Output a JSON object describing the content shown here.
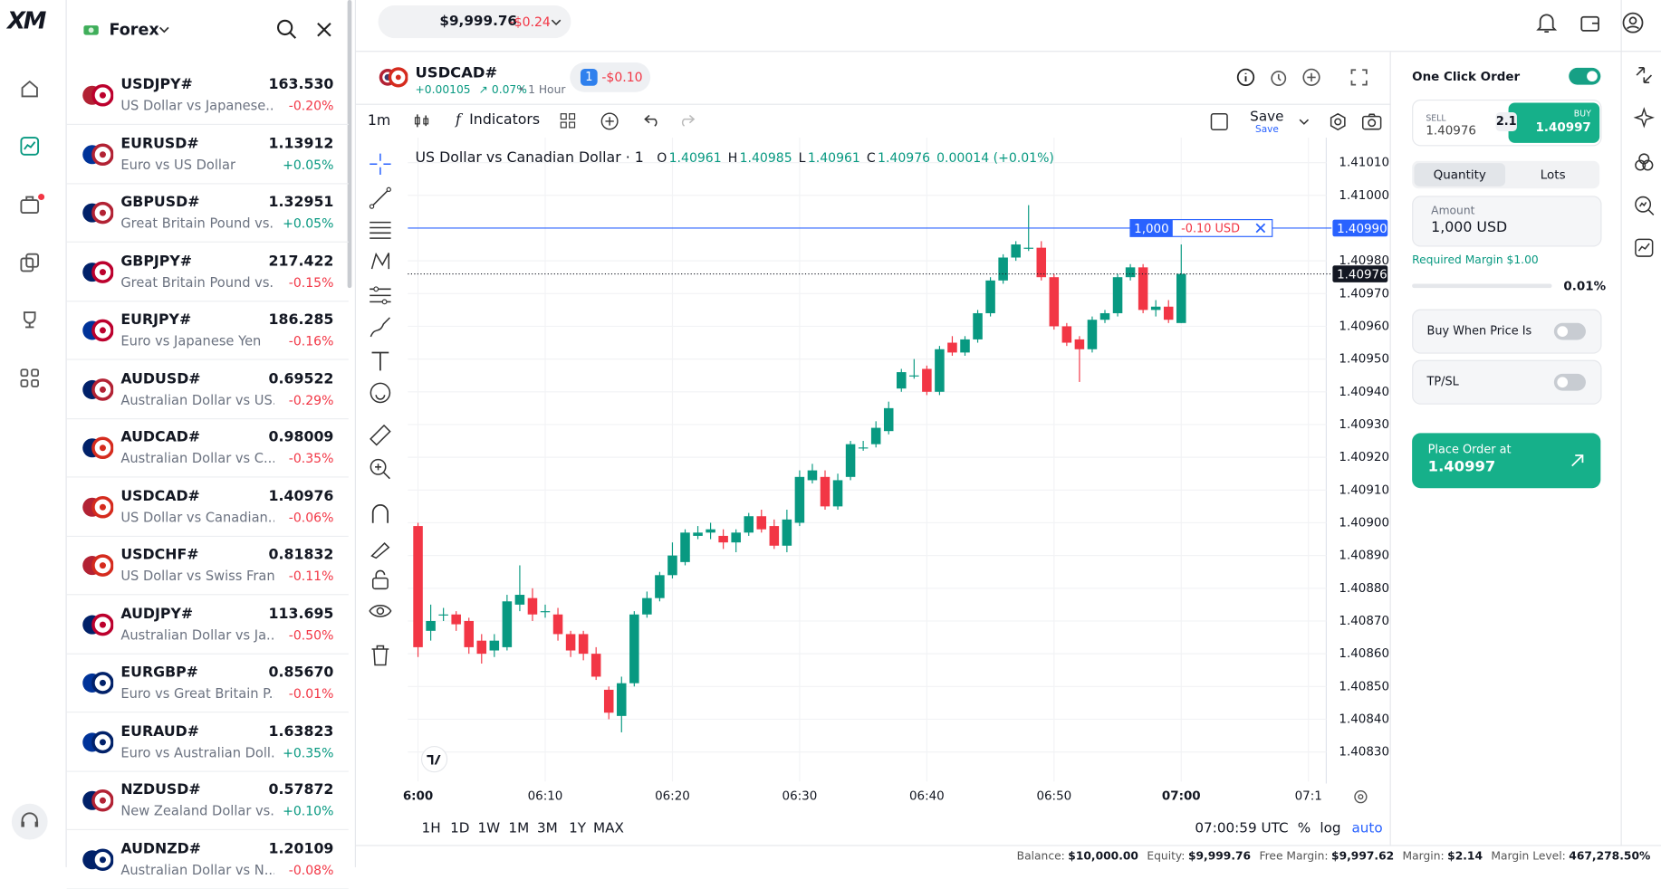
{
  "brand": {
    "logo": "XM"
  },
  "header": {
    "balance": "$9,999.76",
    "change": "-$0.24"
  },
  "sidebar": {
    "category": "Forex",
    "instruments": [
      {
        "symbol": "USDJPY#",
        "name": "US Dollar vs Japanese...",
        "price": "163.530",
        "change": "-0.20%"
      },
      {
        "symbol": "EURUSD#",
        "name": "Euro vs US Dollar",
        "price": "1.13912",
        "change": "+0.05%"
      },
      {
        "symbol": "GBPUSD#",
        "name": "Great Britain Pound vs...",
        "price": "1.32951",
        "change": "+0.05%"
      },
      {
        "symbol": "GBPJPY#",
        "name": "Great Britain Pound vs...",
        "price": "217.422",
        "change": "-0.15%"
      },
      {
        "symbol": "EURJPY#",
        "name": "Euro vs Japanese Yen",
        "price": "186.285",
        "change": "-0.16%"
      },
      {
        "symbol": "AUDUSD#",
        "name": "Australian Dollar vs US...",
        "price": "0.69522",
        "change": "-0.29%"
      },
      {
        "symbol": "AUDCAD#",
        "name": "Australian Dollar vs C...",
        "price": "0.98009",
        "change": "-0.35%"
      },
      {
        "symbol": "USDCAD#",
        "name": "US Dollar vs Canadian...",
        "price": "1.40976",
        "change": "-0.06%"
      },
      {
        "symbol": "USDCHF#",
        "name": "US Dollar vs Swiss Franc",
        "price": "0.81832",
        "change": "-0.11%"
      },
      {
        "symbol": "AUDJPY#",
        "name": "Australian Dollar vs Ja...",
        "price": "113.695",
        "change": "-0.50%"
      },
      {
        "symbol": "EURGBP#",
        "name": "Euro vs Great Britain P...",
        "price": "0.85670",
        "change": "-0.01%"
      },
      {
        "symbol": "EURAUD#",
        "name": "Euro vs Australian Doll...",
        "price": "1.63823",
        "change": "+0.35%"
      },
      {
        "symbol": "NZDUSD#",
        "name": "New Zealand Dollar vs...",
        "price": "0.57872",
        "change": "+0.10%"
      },
      {
        "symbol": "AUDNZD#",
        "name": "Australian Dollar vs N...",
        "price": "1.20109",
        "change": "-0.08%"
      }
    ]
  },
  "symbol_bar": {
    "symbol": "USDCAD#",
    "change": "+0.00105",
    "percent": "0.07%",
    "period": "• 1 Hour",
    "positions": "1",
    "pnl": "-$0.10"
  },
  "toolbar": {
    "interval": "1m",
    "indicators": "Indicators",
    "save": "Save",
    "save_sub": "Save"
  },
  "chart_legend": {
    "title": "US Dollar vs Canadian Dollar · 1",
    "fields": [
      {
        "key": "O",
        "value": "1.40961"
      },
      {
        "key": "H",
        "value": "1.40985"
      },
      {
        "key": "L",
        "value": "1.40961"
      },
      {
        "key": "C",
        "value": "1.40976"
      }
    ],
    "change": "0.00014 (+0.01%)"
  },
  "chart_data": {
    "type": "candlestick",
    "up_color": "#089981",
    "down_color": "#f23645",
    "grid": true,
    "x": [
      0,
      1,
      2,
      3,
      4,
      5,
      6,
      7,
      8,
      9,
      10,
      11,
      12,
      13,
      14,
      15,
      16,
      17,
      18,
      19,
      20,
      21,
      22,
      23,
      24,
      25,
      26,
      27,
      28,
      29,
      30,
      31,
      32,
      33,
      34,
      35,
      36,
      37,
      38,
      39,
      40,
      41,
      42,
      43,
      44,
      45,
      46,
      47,
      48,
      49,
      50,
      51,
      52,
      53,
      54,
      55,
      56,
      57,
      58,
      59,
      60
    ],
    "open": [
      1.40899,
      1.40867,
      1.40872,
      1.40872,
      1.4087,
      1.40864,
      1.40861,
      1.40862,
      1.40875,
      1.40877,
      1.40873,
      1.40872,
      1.40866,
      1.40866,
      1.4086,
      1.40849,
      1.40841,
      1.40851,
      1.40872,
      1.40877,
      1.40884,
      1.40888,
      1.40896,
      1.40897,
      1.40896,
      1.40894,
      1.40897,
      1.40902,
      1.40899,
      1.40893,
      1.409,
      1.40913,
      1.40914,
      1.40905,
      1.40914,
      1.40923,
      1.40924,
      1.40928,
      1.40941,
      1.40945,
      1.40947,
      1.4094,
      1.40955,
      1.40952,
      1.40956,
      1.40964,
      1.40974,
      1.40981,
      1.40984,
      1.40984,
      1.40975,
      1.4096,
      1.40956,
      1.40953,
      1.40962,
      1.40964,
      1.40975,
      1.40978,
      1.40965,
      1.40966,
      1.40961
    ],
    "high": [
      1.409,
      1.40875,
      1.40874,
      1.40873,
      1.40871,
      1.40866,
      1.40866,
      1.40878,
      1.40887,
      1.4088,
      1.40875,
      1.40874,
      1.40867,
      1.40867,
      1.40862,
      1.4085,
      1.40853,
      1.40873,
      1.40879,
      1.40885,
      1.40894,
      1.40898,
      1.40899,
      1.409,
      1.40898,
      1.40898,
      1.40903,
      1.40904,
      1.40901,
      1.40904,
      1.40916,
      1.40918,
      1.40916,
      1.40915,
      1.40925,
      1.40925,
      1.40931,
      1.40937,
      1.40947,
      1.4095,
      1.40948,
      1.40954,
      1.40957,
      1.40957,
      1.40965,
      1.40975,
      1.40982,
      1.40986,
      1.40997,
      1.40986,
      1.40976,
      1.40961,
      1.40957,
      1.40963,
      1.40965,
      1.40976,
      1.40979,
      1.40979,
      1.40968,
      1.40968,
      1.40985
    ],
    "low": [
      1.40859,
      1.40864,
      1.4087,
      1.40867,
      1.4086,
      1.40857,
      1.40859,
      1.40861,
      1.40873,
      1.4087,
      1.40871,
      1.40864,
      1.40859,
      1.40858,
      1.40852,
      1.4084,
      1.40836,
      1.4085,
      1.40871,
      1.40876,
      1.40883,
      1.40887,
      1.40895,
      1.40895,
      1.40892,
      1.40891,
      1.40896,
      1.40897,
      1.40892,
      1.40891,
      1.40899,
      1.40912,
      1.40904,
      1.40904,
      1.40913,
      1.40922,
      1.40923,
      1.40927,
      1.4094,
      1.40944,
      1.40939,
      1.40939,
      1.40951,
      1.40951,
      1.40955,
      1.40963,
      1.40973,
      1.4098,
      1.40983,
      1.40974,
      1.40959,
      1.40954,
      1.40943,
      1.40952,
      1.40961,
      1.40963,
      1.40974,
      1.40964,
      1.40963,
      1.40961,
      1.40961
    ],
    "close": [
      1.40862,
      1.4087,
      1.40872,
      1.40869,
      1.40862,
      1.4086,
      1.40864,
      1.40876,
      1.40878,
      1.40872,
      1.40873,
      1.40866,
      1.40861,
      1.4086,
      1.40853,
      1.40842,
      1.40851,
      1.40872,
      1.40877,
      1.40884,
      1.4089,
      1.40897,
      1.40897,
      1.40898,
      1.40894,
      1.40897,
      1.40902,
      1.40898,
      1.40893,
      1.40901,
      1.40914,
      1.40916,
      1.40905,
      1.40913,
      1.40924,
      1.40923,
      1.40929,
      1.40935,
      1.40946,
      1.40945,
      1.4094,
      1.40953,
      1.40952,
      1.40956,
      1.40964,
      1.40974,
      1.40981,
      1.40985,
      1.40984,
      1.40975,
      1.4096,
      1.40955,
      1.40953,
      1.40962,
      1.40964,
      1.40975,
      1.40978,
      1.40965,
      1.40966,
      1.40962,
      1.40976
    ],
    "xlim": [
      -0.8,
      71.4
    ],
    "xticks": [
      {
        "value": 0,
        "label": "6:00"
      },
      {
        "value": 10,
        "label": "06:10"
      },
      {
        "value": 20,
        "label": "06:20"
      },
      {
        "value": 30,
        "label": "06:30"
      },
      {
        "value": 40,
        "label": "06:40"
      },
      {
        "value": 50,
        "label": "06:50"
      },
      {
        "value": 60,
        "label": "07:00"
      },
      {
        "value": 70,
        "label": "07:1"
      }
    ],
    "ylim": [
      1.40821,
      1.41016
    ],
    "yticks": [
      {
        "value": 1.4101,
        "label": "1.41010"
      },
      {
        "value": 1.41,
        "label": "1.41000"
      },
      {
        "value": 1.4098,
        "label": "1.40980"
      },
      {
        "value": 1.4097,
        "label": "1.40970"
      },
      {
        "value": 1.4096,
        "label": "1.40960"
      },
      {
        "value": 1.4095,
        "label": "1.40950"
      },
      {
        "value": 1.4094,
        "label": "1.40940"
      },
      {
        "value": 1.4093,
        "label": "1.40930"
      },
      {
        "value": 1.4092,
        "label": "1.40920"
      },
      {
        "value": 1.4091,
        "label": "1.40910"
      },
      {
        "value": 1.409,
        "label": "1.40900"
      },
      {
        "value": 1.4089,
        "label": "1.40890"
      },
      {
        "value": 1.4088,
        "label": "1.40880"
      },
      {
        "value": 1.4087,
        "label": "1.40870"
      },
      {
        "value": 1.4086,
        "label": "1.40860"
      },
      {
        "value": 1.4085,
        "label": "1.40850"
      },
      {
        "value": 1.4084,
        "label": "1.40840"
      },
      {
        "value": 1.4083,
        "label": "1.40830"
      }
    ],
    "order_line": {
      "value": 1.4099,
      "label": "1.40990",
      "size": "1,000",
      "pnl": "-0.10 USD"
    },
    "last_price": {
      "value": 1.40976,
      "label": "1.40976"
    }
  },
  "chart_footer": {
    "ranges": [
      "1H",
      "1D",
      "1W",
      "1M",
      "3M",
      "1Y",
      "MAX"
    ],
    "clock": "07:00:59 UTC",
    "percent": "%",
    "log": "log",
    "auto": "auto"
  },
  "status_bar": [
    {
      "label": "Balance:",
      "value": "$10,000.00"
    },
    {
      "label": "Equity:",
      "value": "$9,999.76"
    },
    {
      "label": "Free Margin:",
      "value": "$9,997.62"
    },
    {
      "label": "Margin:",
      "value": "$2.14"
    },
    {
      "label": "Margin Level:",
      "value": "467,278.50%"
    }
  ],
  "order_panel": {
    "title": "One Click Order",
    "sell_label": "SELL",
    "sell_price": "1.40976",
    "spread": "2.1",
    "buy_label": "BUY",
    "buy_price": "1.40997",
    "tab_quantity": "Quantity",
    "tab_lots": "Lots",
    "amount_label": "Amount",
    "amount": "1,000 USD",
    "required_margin": "Required Margin $1.00",
    "margin_percent": "0.01%",
    "buy_when": "Buy When Price Is",
    "tpsl": "TP/SL",
    "place_label": "Place Order at",
    "place_price": "1.40997"
  }
}
